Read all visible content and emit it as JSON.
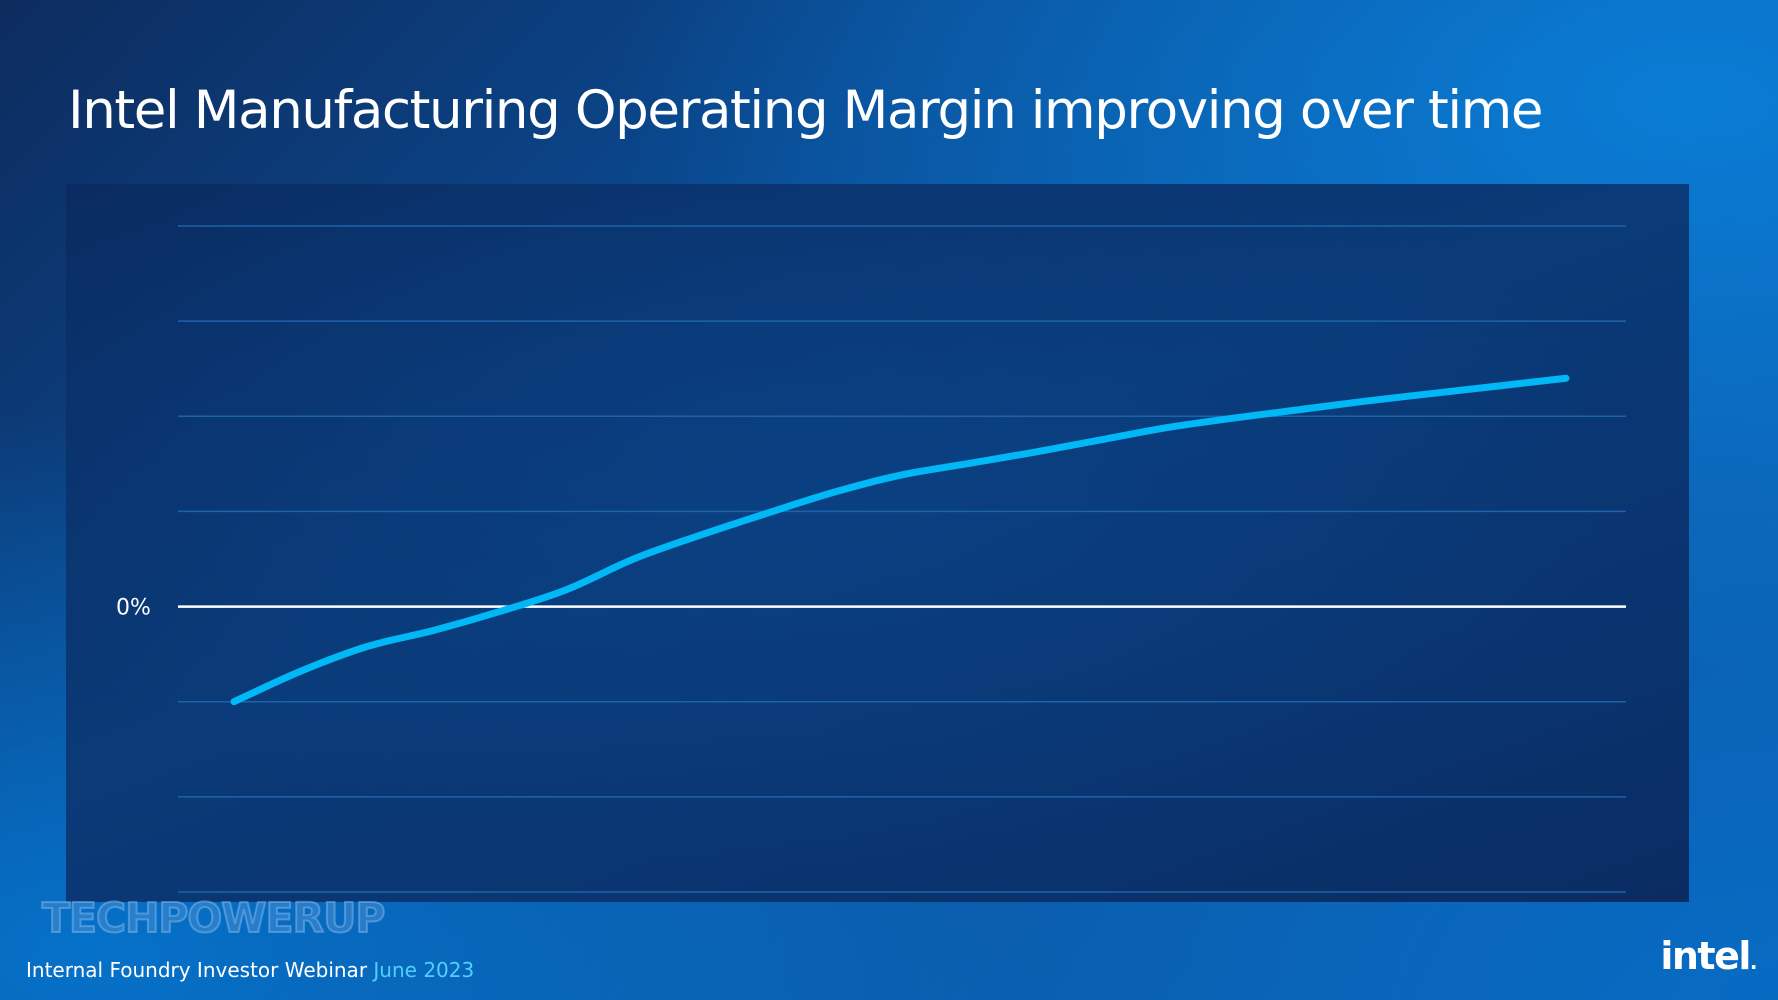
{
  "title": "Intel Manufacturing Operating Margin improving over time",
  "footer": {
    "event": "Internal Foundry Investor Webinar",
    "date": "June 2023"
  },
  "watermark": "TECHPOWERUP",
  "logo": "intel",
  "colors": {
    "line": "#00b8f5",
    "zero_line": "#ffffff",
    "gridline": "#1e63a8",
    "date_accent": "#4fd0ff"
  },
  "chart_data": {
    "type": "line",
    "title": "",
    "xlabel": "",
    "ylabel": "",
    "y_tick_labels": [
      {
        "value": 0,
        "label": "0%"
      }
    ],
    "ylim": [
      -3,
      4
    ],
    "gridlines": [
      -3,
      -2,
      -1,
      0,
      1,
      2,
      3,
      4
    ],
    "grid": true,
    "legend": "none",
    "series": [
      {
        "x": [
          0,
          1,
          2,
          3,
          4,
          5,
          6,
          7,
          8,
          9,
          10,
          11,
          12,
          13,
          14,
          15,
          16,
          17,
          18,
          19,
          20
        ],
        "values": [
          -1.0,
          -0.68,
          -0.42,
          -0.25,
          -0.05,
          0.18,
          0.5,
          0.75,
          0.98,
          1.2,
          1.38,
          1.5,
          1.62,
          1.75,
          1.88,
          1.98,
          2.07,
          2.16,
          2.24,
          2.32,
          2.4
        ]
      }
    ]
  }
}
